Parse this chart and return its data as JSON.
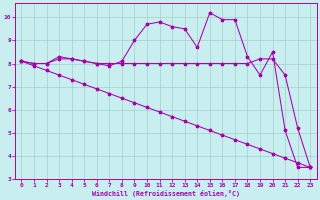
{
  "background_color": "#c8eef0",
  "grid_color": "#a0d0c8",
  "line_color": "#aa00aa",
  "spine_color": "#aa00aa",
  "xlabel": "Windchill (Refroidissement éolien,°C)",
  "xlim": [
    -0.5,
    23.5
  ],
  "ylim": [
    3,
    10.6
  ],
  "yticks": [
    3,
    4,
    5,
    6,
    7,
    8,
    9,
    10
  ],
  "xticks": [
    0,
    1,
    2,
    3,
    4,
    5,
    6,
    7,
    8,
    9,
    10,
    11,
    12,
    13,
    14,
    15,
    16,
    17,
    18,
    19,
    20,
    21,
    22,
    23
  ],
  "diag_x": [
    0,
    1,
    2,
    3,
    4,
    5,
    6,
    7,
    8,
    9,
    10,
    11,
    12,
    13,
    14,
    15,
    16,
    17,
    18,
    19,
    20,
    21,
    22,
    23
  ],
  "diag_y": [
    8.1,
    7.9,
    7.7,
    7.5,
    7.3,
    7.1,
    6.9,
    6.7,
    6.5,
    6.3,
    6.1,
    5.9,
    5.7,
    5.5,
    5.3,
    5.1,
    4.9,
    4.7,
    4.5,
    4.3,
    4.1,
    3.9,
    3.7,
    3.5
  ],
  "flat_x": [
    0,
    1,
    2,
    3,
    4,
    5,
    6,
    7,
    8,
    9,
    10,
    11,
    12,
    13,
    14,
    15,
    16,
    17,
    18,
    19,
    20,
    21,
    22,
    23
  ],
  "flat_y": [
    8.1,
    8.0,
    8.0,
    8.2,
    8.2,
    8.1,
    8.0,
    8.0,
    8.0,
    8.0,
    8.0,
    8.0,
    8.0,
    8.0,
    8.0,
    8.0,
    8.0,
    8.0,
    8.0,
    8.2,
    8.2,
    7.5,
    5.2,
    3.5
  ],
  "wavy_x": [
    0,
    1,
    2,
    3,
    4,
    5,
    6,
    7,
    8,
    9,
    10,
    11,
    12,
    13,
    14,
    15,
    16,
    17,
    18,
    19,
    20,
    21,
    22,
    23
  ],
  "wavy_y": [
    8.1,
    8.0,
    8.0,
    8.3,
    8.2,
    8.1,
    8.0,
    7.9,
    8.1,
    9.0,
    9.7,
    9.8,
    9.6,
    9.5,
    8.7,
    10.2,
    9.9,
    9.9,
    8.3,
    7.5,
    8.5,
    5.1,
    3.5,
    3.5
  ]
}
